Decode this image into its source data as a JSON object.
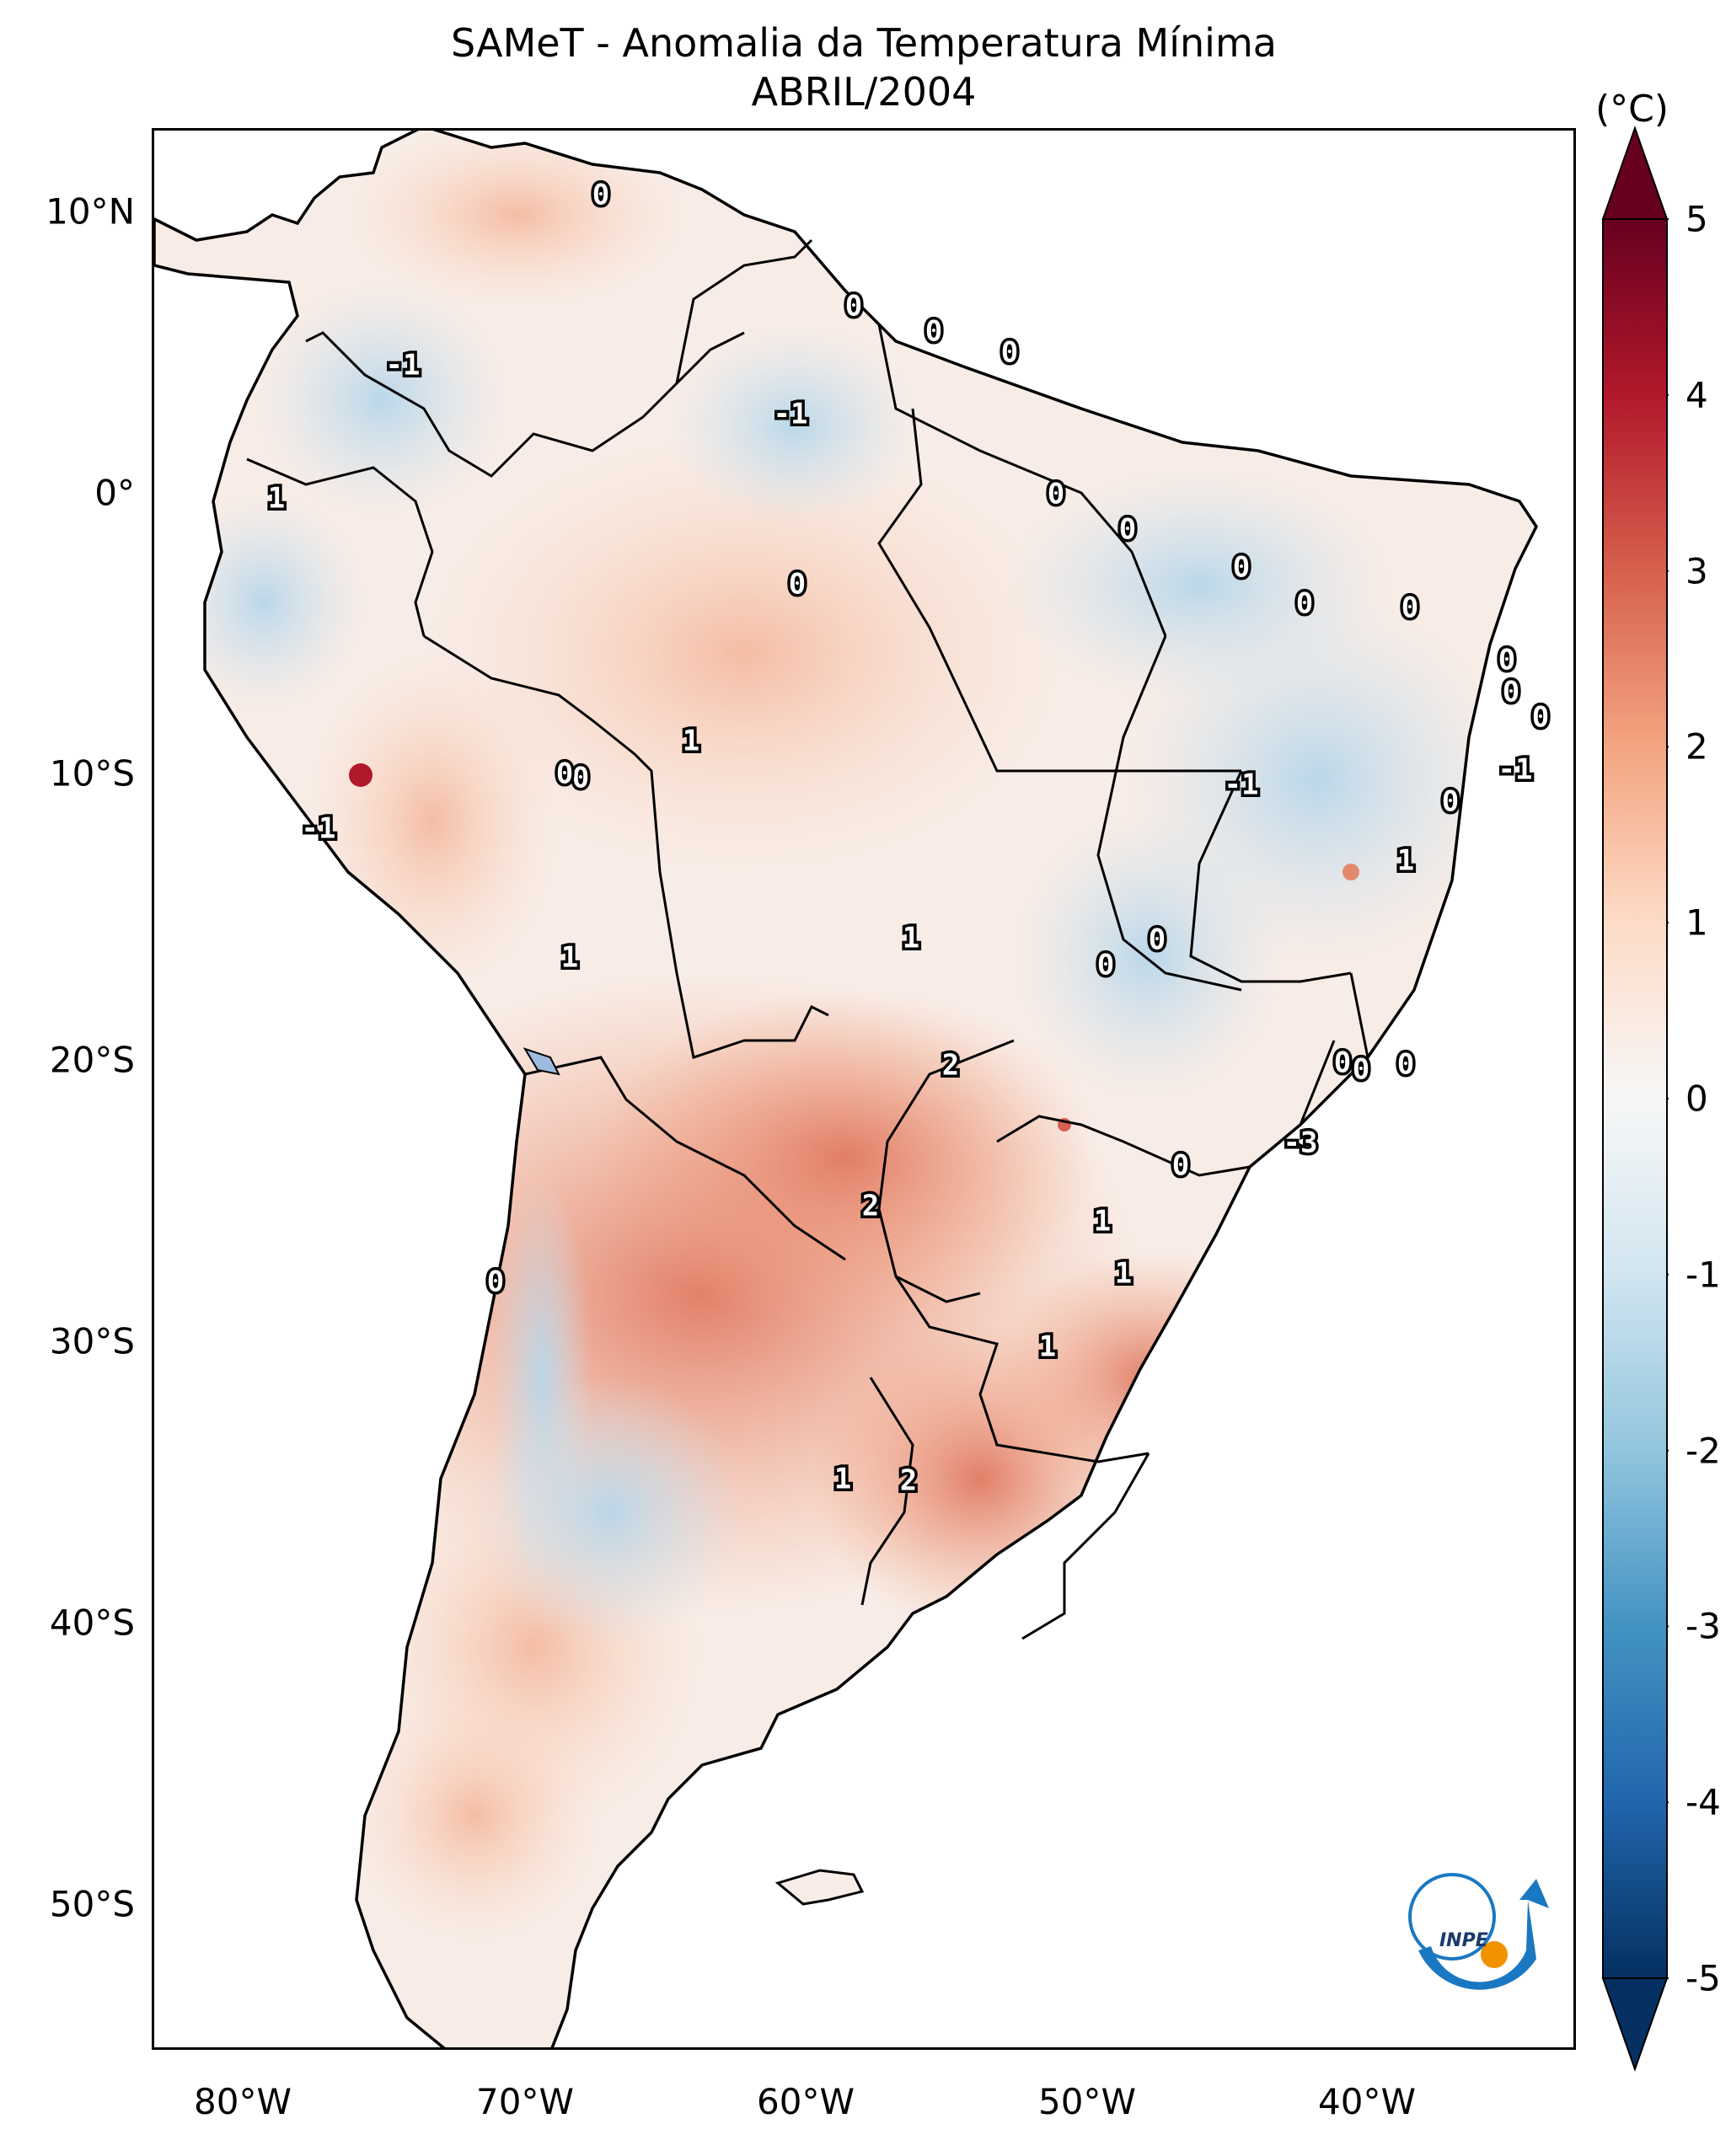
{
  "title": {
    "line1": "SAMeT - Anomalia da Temperatura Mínima",
    "line2": "ABRIL/2004"
  },
  "axes": {
    "lat_ticks": [
      "10°N",
      "0°",
      "10°S",
      "20°S",
      "30°S",
      "40°S",
      "50°S"
    ],
    "lon_ticks": [
      "80°W",
      "70°W",
      "60°W",
      "50°W",
      "40°W"
    ]
  },
  "colorbar": {
    "unit": "(°C)",
    "ticks": [
      "5",
      "4",
      "3",
      "2",
      "1",
      "0",
      "-1",
      "-2",
      "-3",
      "-4",
      "-5"
    ],
    "colors": [
      "#67001f",
      "#b2182b",
      "#d6604d",
      "#f4a582",
      "#fddbc7",
      "#f7f7f7",
      "#d1e5f0",
      "#92c5de",
      "#4393c3",
      "#2166ac",
      "#053061"
    ]
  },
  "contour_labels": [
    "0",
    "0",
    "0",
    "0",
    "-1",
    "-1",
    "1",
    "0",
    "0",
    "0",
    "0",
    "0",
    "0",
    "0",
    "0",
    "-1",
    "0",
    "1",
    "0",
    "0",
    "-1",
    "-1",
    "0",
    "1",
    "1",
    "0",
    "1",
    "0",
    "0",
    "2",
    "0",
    "0",
    "-3",
    "0",
    "2",
    "1",
    "1",
    "1",
    "0",
    "1",
    "2"
  ],
  "logo": {
    "text": "INPE",
    "colors": {
      "arc": "#1a78c2",
      "dot": "#f39200"
    }
  }
}
